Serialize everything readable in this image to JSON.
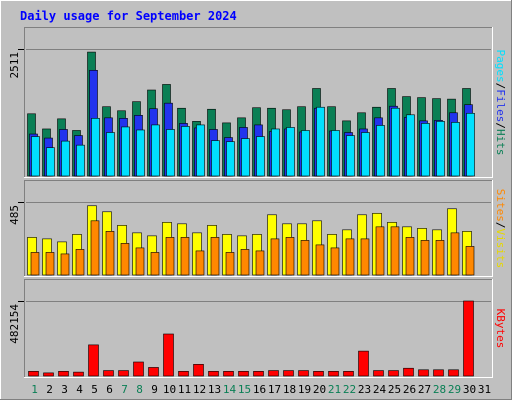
{
  "window": {
    "title": "Daily usage for September 2024"
  },
  "colors": {
    "background": "#c0c0c0",
    "title": "#0000ff",
    "frame_light": "#ffffff",
    "frame_dark": "#808080",
    "hits": "#0a7f55",
    "files": "#2233ee",
    "pages": "#00e0ff",
    "visits": "#ffff00",
    "sites": "#ff8800",
    "kbytes": "#ff0000",
    "weekend_day": "#0a7f55",
    "weekday": "#000000",
    "gridline": "#808080"
  },
  "chart_data": [
    {
      "type": "bar",
      "title": "Daily usage for September 2024",
      "panel": "hits-files-pages",
      "ylabel_max": "2511",
      "ylim": [
        0,
        2511
      ],
      "categories": [
        "1",
        "2",
        "3",
        "4",
        "5",
        "6",
        "7",
        "8",
        "9",
        "10",
        "11",
        "12",
        "13",
        "14",
        "15",
        "16",
        "17",
        "18",
        "19",
        "20",
        "21",
        "22",
        "23",
        "24",
        "25",
        "26",
        "27",
        "28",
        "29",
        "30",
        "31"
      ],
      "legend": [
        "Pages",
        "/",
        "Files",
        "/",
        "Hits"
      ],
      "series": [
        {
          "name": "Hits",
          "values": [
            1230,
            930,
            1130,
            900,
            2450,
            1370,
            1290,
            1470,
            1700,
            1810,
            1340,
            1080,
            1320,
            1050,
            1150,
            1350,
            1340,
            1310,
            1370,
            1730,
            1370,
            1090,
            1250,
            1360,
            1730,
            1570,
            1550,
            1530,
            1520,
            1730,
            0
          ]
        },
        {
          "name": "Files",
          "values": [
            830,
            750,
            920,
            800,
            2090,
            1150,
            1140,
            1200,
            1330,
            1440,
            1040,
            950,
            920,
            760,
            960,
            1010,
            880,
            930,
            870,
            1340,
            890,
            860,
            930,
            1150,
            1380,
            1160,
            1090,
            1100,
            1250,
            1410,
            0
          ]
        },
        {
          "name": "Pages",
          "values": [
            780,
            560,
            690,
            610,
            1140,
            860,
            970,
            910,
            1010,
            920,
            980,
            1010,
            700,
            680,
            740,
            780,
            930,
            960,
            900,
            1360,
            900,
            800,
            860,
            1000,
            1340,
            1210,
            1040,
            1080,
            1060,
            1240,
            0
          ]
        }
      ]
    },
    {
      "type": "bar",
      "panel": "visits-sites",
      "ylabel_max": "485",
      "ylim": [
        0,
        485
      ],
      "categories": [
        "1",
        "2",
        "3",
        "4",
        "5",
        "6",
        "7",
        "8",
        "9",
        "10",
        "11",
        "12",
        "13",
        "14",
        "15",
        "16",
        "17",
        "18",
        "19",
        "20",
        "21",
        "22",
        "23",
        "24",
        "25",
        "26",
        "27",
        "28",
        "29",
        "30",
        "31"
      ],
      "legend": [
        "Sites",
        "/",
        "Visits"
      ],
      "series": [
        {
          "name": "Visits",
          "values": [
            250,
            240,
            220,
            270,
            460,
            420,
            330,
            280,
            260,
            350,
            340,
            280,
            330,
            270,
            260,
            270,
            400,
            340,
            340,
            360,
            270,
            300,
            400,
            410,
            350,
            320,
            310,
            300,
            440,
            290,
            0
          ]
        },
        {
          "name": "Sites",
          "values": [
            150,
            150,
            140,
            170,
            360,
            290,
            210,
            180,
            150,
            250,
            250,
            160,
            250,
            150,
            170,
            160,
            240,
            250,
            230,
            200,
            180,
            240,
            240,
            320,
            320,
            250,
            230,
            230,
            280,
            190,
            0
          ]
        }
      ]
    },
    {
      "type": "bar",
      "panel": "kbytes",
      "ylabel_max": "482154",
      "ylim": [
        0,
        482154
      ],
      "categories": [
        "1",
        "2",
        "3",
        "4",
        "5",
        "6",
        "7",
        "8",
        "9",
        "10",
        "11",
        "12",
        "13",
        "14",
        "15",
        "16",
        "17",
        "18",
        "19",
        "20",
        "21",
        "22",
        "23",
        "24",
        "25",
        "26",
        "27",
        "28",
        "29",
        "30",
        "31"
      ],
      "legend": [
        "KBytes"
      ],
      "series": [
        {
          "name": "KBytes",
          "values": [
            30000,
            20000,
            30000,
            25000,
            200000,
            35000,
            35000,
            90000,
            55000,
            270000,
            30000,
            75000,
            30000,
            30000,
            30000,
            30000,
            35000,
            35000,
            35000,
            30000,
            30000,
            30000,
            160000,
            35000,
            35000,
            50000,
            40000,
            40000,
            40000,
            482154,
            0
          ]
        }
      ]
    }
  ],
  "weekend_days": [
    "1",
    "7",
    "8",
    "14",
    "15",
    "21",
    "22",
    "28",
    "29"
  ]
}
